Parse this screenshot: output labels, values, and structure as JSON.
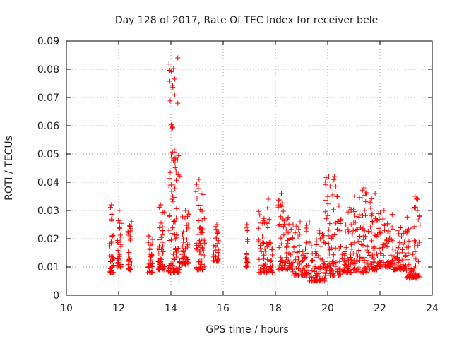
{
  "chart_data": {
    "type": "scatter",
    "title": "Day 128 of 2017, Rate Of TEC Index for receiver bele",
    "xlabel": "GPS time / hours",
    "ylabel": "ROTI / TECUs",
    "xlim": [
      10,
      24
    ],
    "ylim": [
      0,
      0.09
    ],
    "x_ticks": [
      "10",
      "12",
      "14",
      "16",
      "18",
      "20",
      "22",
      "24"
    ],
    "y_ticks": [
      "0",
      "0.01",
      "0.02",
      "0.03",
      "0.04",
      "0.05",
      "0.06",
      "0.07",
      "0.08",
      "0.09"
    ],
    "grid": true,
    "marker": "plus",
    "marker_color": "#ff0000",
    "clusters": [
      {
        "x": [
          11.65,
          11.8
        ],
        "y": [
          0.008,
          0.032
        ]
      },
      {
        "x": [
          11.95,
          12.1
        ],
        "y": [
          0.01,
          0.03
        ]
      },
      {
        "x": [
          12.35,
          12.5
        ],
        "y": [
          0.009,
          0.026
        ]
      },
      {
        "x": [
          13.1,
          13.3
        ],
        "y": [
          0.008,
          0.021
        ]
      },
      {
        "x": [
          13.5,
          13.75
        ],
        "y": [
          0.009,
          0.032
        ]
      },
      {
        "x": [
          13.9,
          14.35
        ],
        "y": [
          0.008,
          0.084
        ]
      },
      {
        "x": [
          14.4,
          14.7
        ],
        "y": [
          0.011,
          0.03
        ]
      },
      {
        "x": [
          14.95,
          15.3
        ],
        "y": [
          0.009,
          0.041
        ]
      },
      {
        "x": [
          15.6,
          15.85
        ],
        "y": [
          0.012,
          0.025
        ]
      },
      {
        "x": [
          16.85,
          16.95
        ],
        "y": [
          0.01,
          0.025
        ]
      },
      {
        "x": [
          17.35,
          17.9
        ],
        "y": [
          0.008,
          0.034
        ]
      },
      {
        "x": [
          18.1,
          18.6
        ],
        "y": [
          0.009,
          0.036
        ]
      },
      {
        "x": [
          18.6,
          19.3
        ],
        "y": [
          0.007,
          0.026
        ]
      },
      {
        "x": [
          19.3,
          19.9
        ],
        "y": [
          0.005,
          0.023
        ]
      },
      {
        "x": [
          19.9,
          20.5
        ],
        "y": [
          0.007,
          0.042
        ]
      },
      {
        "x": [
          20.5,
          21.0
        ],
        "y": [
          0.008,
          0.031
        ]
      },
      {
        "x": [
          21.0,
          21.5
        ],
        "y": [
          0.008,
          0.038
        ]
      },
      {
        "x": [
          21.5,
          22.0
        ],
        "y": [
          0.009,
          0.036
        ]
      },
      {
        "x": [
          22.0,
          22.5
        ],
        "y": [
          0.01,
          0.03
        ]
      },
      {
        "x": [
          22.5,
          23.0
        ],
        "y": [
          0.009,
          0.024
        ]
      },
      {
        "x": [
          23.0,
          23.55
        ],
        "y": [
          0.006,
          0.035
        ]
      }
    ]
  }
}
